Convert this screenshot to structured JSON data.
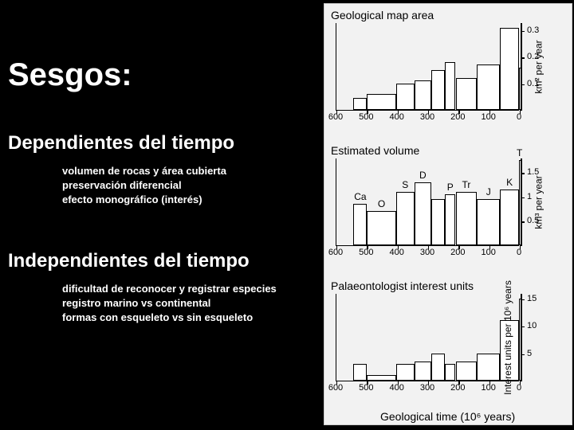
{
  "title": "Sesgos:",
  "section1": {
    "title": "Dependientes del tiempo",
    "items": [
      "volumen de rocas y área cubierta",
      "preservación diferencial",
      "efecto monográfico (interés)"
    ]
  },
  "section2": {
    "title": "Independientes del tiempo",
    "items": [
      "dificultad de reconocer y registrar especies",
      "registro marino vs continental",
      "formas con esqueleto vs sin esqueleto"
    ]
  },
  "charts": {
    "x_categories": [
      "600",
      "500",
      "400",
      "300",
      "200",
      "100",
      "0"
    ],
    "x_label": "Geological time (10⁶ years)",
    "background_color": "#f2f2f2",
    "bar_fill": "#ffffff",
    "bar_border": "#000000",
    "chart1": {
      "title": "Geological map area",
      "y_label": "km² per year",
      "y_ticks": [
        0.1,
        0.2,
        0.3
      ],
      "ylim": [
        0,
        0.33
      ],
      "bars": [
        {
          "x": 544,
          "w": 44,
          "v": 0.045
        },
        {
          "x": 500,
          "w": 95,
          "v": 0.06
        },
        {
          "x": 405,
          "w": 60,
          "v": 0.1
        },
        {
          "x": 345,
          "w": 55,
          "v": 0.11
        },
        {
          "x": 290,
          "w": 45,
          "v": 0.15
        },
        {
          "x": 245,
          "w": 35,
          "v": 0.18
        },
        {
          "x": 210,
          "w": 70,
          "v": 0.12
        },
        {
          "x": 140,
          "w": 75,
          "v": 0.17
        },
        {
          "x": 65,
          "w": 63,
          "v": 0.31
        },
        {
          "x": 2,
          "w": 2,
          "v": 0.16
        }
      ]
    },
    "chart2": {
      "title": "Estimated volume",
      "y_label": "km³ per year",
      "y_ticks": [
        0.5,
        1.0,
        1.5
      ],
      "ylim": [
        0,
        1.8
      ],
      "bars": [
        {
          "x": 544,
          "w": 44,
          "v": 0.85,
          "label": "Ca"
        },
        {
          "x": 500,
          "w": 95,
          "v": 0.7,
          "label": "O"
        },
        {
          "x": 405,
          "w": 60,
          "v": 1.1,
          "label": "S"
        },
        {
          "x": 345,
          "w": 55,
          "v": 1.3,
          "label": "D"
        },
        {
          "x": 290,
          "w": 45,
          "v": 0.95
        },
        {
          "x": 245,
          "w": 35,
          "v": 1.05,
          "label": "P"
        },
        {
          "x": 210,
          "w": 70,
          "v": 1.1,
          "label": "Tr"
        },
        {
          "x": 140,
          "w": 75,
          "v": 0.95,
          "label": "J"
        },
        {
          "x": 65,
          "w": 63,
          "v": 1.15,
          "label": "K"
        },
        {
          "x": 2,
          "w": 2,
          "v": 1.75,
          "label": "T"
        }
      ]
    },
    "chart3": {
      "title": "Palaeontologist interest units",
      "y_label": "Interest units per 10⁶ years",
      "y_ticks": [
        5,
        10,
        15
      ],
      "ylim": [
        0,
        16
      ],
      "bars": [
        {
          "x": 544,
          "w": 44,
          "v": 3.0
        },
        {
          "x": 500,
          "w": 95,
          "v": 1.0
        },
        {
          "x": 405,
          "w": 60,
          "v": 3.0
        },
        {
          "x": 345,
          "w": 55,
          "v": 3.5
        },
        {
          "x": 290,
          "w": 45,
          "v": 5.0
        },
        {
          "x": 245,
          "w": 35,
          "v": 3.0
        },
        {
          "x": 210,
          "w": 70,
          "v": 3.5
        },
        {
          "x": 140,
          "w": 75,
          "v": 5.0
        },
        {
          "x": 65,
          "w": 63,
          "v": 11.0
        },
        {
          "x": 2,
          "w": 2,
          "v": 15.0
        }
      ]
    }
  }
}
